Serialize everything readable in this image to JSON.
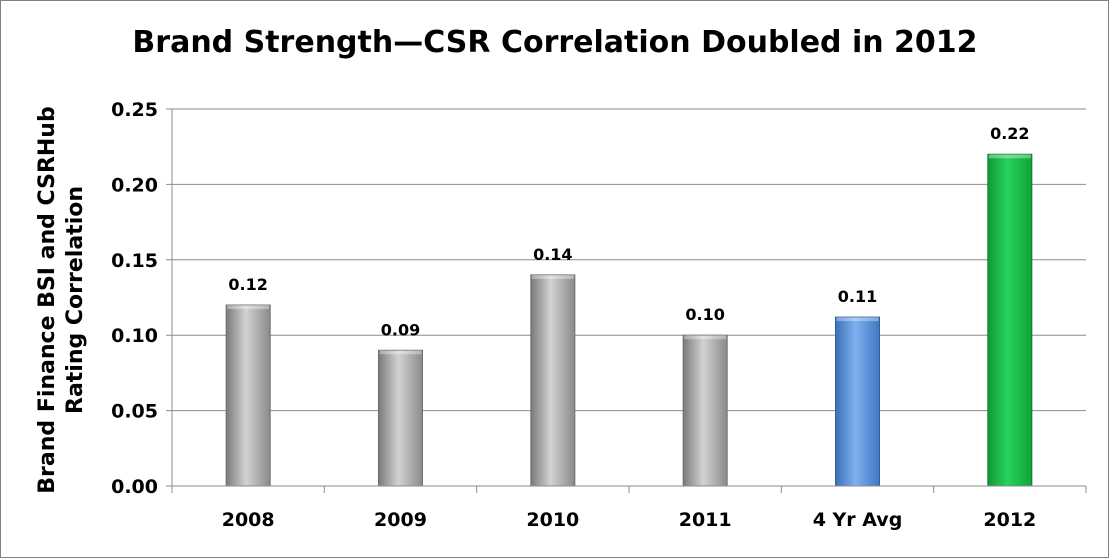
{
  "chart_data": {
    "type": "bar",
    "title": "Brand Strength—CSR Correlation Doubled in 2012",
    "ylabel_lines": [
      "Brand Finance BSI and CSRHub",
      "Rating Correlation"
    ],
    "xlabel": "",
    "categories": [
      "2008",
      "2009",
      "2010",
      "2011",
      "4 Yr Avg",
      "2012"
    ],
    "values": [
      0.12,
      0.09,
      0.14,
      0.1,
      0.112,
      0.22
    ],
    "data_labels": [
      "0.12",
      "0.09",
      "0.14",
      "0.10",
      "0.11",
      "0.22"
    ],
    "bar_colors": [
      "#a6a6a6",
      "#a6a6a6",
      "#a6a6a6",
      "#a6a6a6",
      "#4f8ed8",
      "#1fb84a"
    ],
    "ylim": [
      0,
      0.25
    ],
    "yticks": [
      "0.00",
      "0.05",
      "0.10",
      "0.15",
      "0.20",
      "0.25"
    ],
    "grid": true,
    "legend": "none"
  }
}
